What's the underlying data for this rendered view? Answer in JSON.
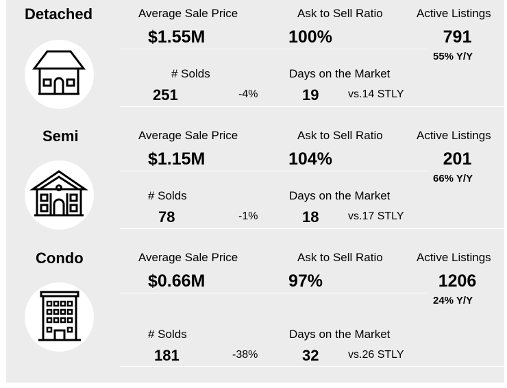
{
  "labels": {
    "avg_price": "Average Sale Price",
    "ask_ratio": "Ask to Sell Ratio",
    "active": "Active Listings",
    "solds": "# Solds",
    "dom": "Days on the Market"
  },
  "sections": [
    {
      "title": "Detached",
      "icon": "house-icon",
      "avg_price": "$1.55M",
      "ask_ratio": "100%",
      "active": "791",
      "active_yoy": "55% Y/Y",
      "solds": "251",
      "solds_change": "-4%",
      "dom": "19",
      "dom_compare": "vs.14 STLY"
    },
    {
      "title": "Semi",
      "icon": "semi-house-icon",
      "avg_price": "$1.15M",
      "ask_ratio": "104%",
      "active": "201",
      "active_yoy": "66% Y/Y",
      "solds": "78",
      "solds_change": "-1%",
      "dom": "18",
      "dom_compare": "vs.17 STLY"
    },
    {
      "title": "Condo",
      "icon": "condo-building-icon",
      "avg_price": "$0.66M",
      "ask_ratio": "97%",
      "active": "1206",
      "active_yoy": "24% Y/Y",
      "solds": "181",
      "solds_change": "-38%",
      "dom": "32",
      "dom_compare": "vs.26 STLY"
    }
  ]
}
